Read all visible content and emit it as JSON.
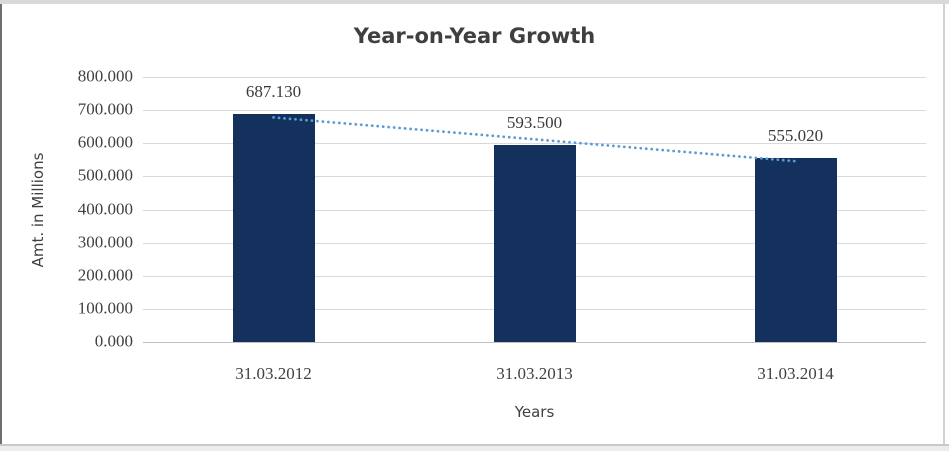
{
  "chart_data": {
    "type": "bar",
    "title": "Year-on-Year Growth",
    "categories": [
      "31.03.2012",
      "31.03.2013",
      "31.03.2014"
    ],
    "values": [
      687.13,
      593.5,
      555.02
    ],
    "value_labels": [
      "687.130",
      "593.500",
      "555.020"
    ],
    "xlabel": "Years",
    "ylabel": "Amt. in Millions",
    "ylim": [
      0,
      800
    ],
    "ytick_values": [
      800,
      700,
      600,
      500,
      400,
      300,
      200,
      100,
      0
    ],
    "ytick_labels": [
      "800.000",
      "700.000",
      "600.000",
      "500.000",
      "400.000",
      "300.000",
      "200.000",
      "100.000",
      "0.000"
    ],
    "grid": true,
    "legend": "none",
    "trendline": {
      "type": "linear",
      "style": "dotted"
    },
    "colors": {
      "bar": "#14305c",
      "trendline": "#5b9bd5",
      "gridline": "#d9d9d9",
      "axis_line": "#bfbfbf",
      "text": "#404040",
      "title_text": "#3f3f3f"
    }
  }
}
